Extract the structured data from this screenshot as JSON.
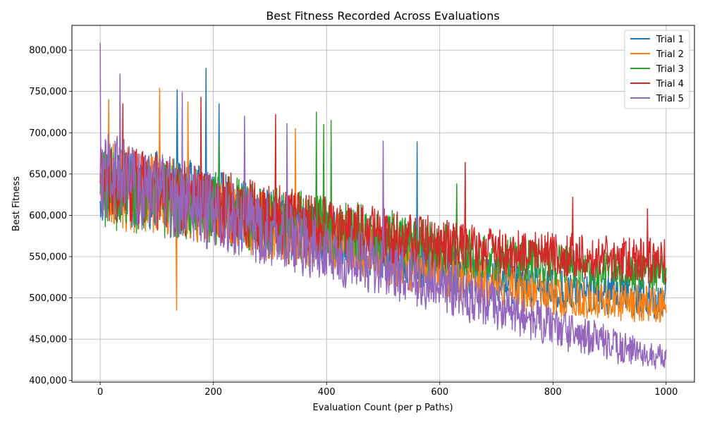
{
  "chart_data": {
    "type": "line",
    "title": "Best Fitness Recorded Across Evaluations",
    "xlabel": "Evaluation Count (per p Paths)",
    "ylabel": "Best Fitness",
    "xlim": [
      -50,
      1050
    ],
    "ylim": [
      398000,
      830000
    ],
    "xticks": [
      0,
      200,
      400,
      600,
      800,
      1000
    ],
    "xtick_labels": [
      "0",
      "200",
      "400",
      "600",
      "800",
      "1000"
    ],
    "yticks": [
      400000,
      450000,
      500000,
      550000,
      600000,
      650000,
      700000,
      750000,
      800000
    ],
    "ytick_labels": [
      "400,000",
      "450,000",
      "500,000",
      "550,000",
      "600,000",
      "650,000",
      "700,000",
      "750,000",
      "800,000"
    ],
    "grid": true,
    "legend_position": "upper-right",
    "series": [
      {
        "name": "Trial 1",
        "color": "#1f77b4",
        "x": [
          0,
          25,
          50,
          75,
          100,
          125,
          150,
          175,
          200,
          225,
          250,
          275,
          300,
          325,
          350,
          375,
          400,
          425,
          450,
          475,
          500,
          525,
          550,
          575,
          600,
          625,
          650,
          675,
          700,
          725,
          750,
          775,
          800,
          825,
          850,
          875,
          900,
          925,
          950,
          975,
          1000
        ],
        "mean": [
          640000,
          645000,
          632000,
          628000,
          630000,
          622000,
          625000,
          615000,
          612000,
          606000,
          600000,
          598000,
          590000,
          585000,
          578000,
          575000,
          570000,
          566000,
          562000,
          558000,
          553000,
          550000,
          548000,
          542000,
          538000,
          532000,
          528000,
          525000,
          522000,
          518000,
          515000,
          512000,
          510000,
          508000,
          506000,
          505000,
          503000,
          502000,
          500000,
          499000,
          498000
        ],
        "spread": [
          40000,
          40000,
          40000,
          38000,
          38000,
          38000,
          38000,
          36000,
          36000,
          34000,
          34000,
          32000,
          32000,
          32000,
          30000,
          30000,
          30000,
          28000,
          28000,
          28000,
          26000,
          26000,
          26000,
          26000,
          24000,
          24000,
          24000,
          22000,
          22000,
          22000,
          22000,
          20000,
          20000,
          20000,
          20000,
          20000,
          20000,
          20000,
          20000,
          20000,
          20000
        ],
        "peaks": [
          [
            187,
            778000
          ],
          [
            210,
            735000
          ],
          [
            136,
            752000
          ],
          [
            560,
            689000
          ]
        ]
      },
      {
        "name": "Trial 2",
        "color": "#ff7f0e",
        "x": [
          0,
          25,
          50,
          75,
          100,
          125,
          150,
          175,
          200,
          225,
          250,
          275,
          300,
          325,
          350,
          375,
          400,
          425,
          450,
          475,
          500,
          525,
          550,
          575,
          600,
          625,
          650,
          675,
          700,
          725,
          750,
          775,
          800,
          825,
          850,
          875,
          900,
          925,
          950,
          975,
          1000
        ],
        "mean": [
          640000,
          635000,
          630000,
          628000,
          625000,
          620000,
          615000,
          610000,
          605000,
          600000,
          595000,
          590000,
          586000,
          582000,
          578000,
          574000,
          570000,
          565000,
          560000,
          555000,
          550000,
          545000,
          540000,
          536000,
          532000,
          528000,
          524000,
          520000,
          516000,
          512000,
          508000,
          505000,
          502000,
          500000,
          498000,
          496000,
          495000,
          494000,
          493000,
          492000,
          492000
        ],
        "spread": [
          42000,
          42000,
          42000,
          40000,
          40000,
          40000,
          38000,
          38000,
          36000,
          36000,
          34000,
          34000,
          32000,
          32000,
          32000,
          30000,
          30000,
          30000,
          28000,
          28000,
          28000,
          26000,
          26000,
          26000,
          24000,
          24000,
          24000,
          22000,
          22000,
          22000,
          20000,
          20000,
          20000,
          20000,
          18000,
          18000,
          18000,
          18000,
          18000,
          18000,
          18000
        ],
        "peaks": [
          [
            105,
            754000
          ],
          [
            15,
            740000
          ],
          [
            155,
            737000
          ],
          [
            345,
            705000
          ],
          [
            135,
            485000
          ]
        ]
      },
      {
        "name": "Trial 3",
        "color": "#2ca02c",
        "x": [
          0,
          25,
          50,
          75,
          100,
          125,
          150,
          175,
          200,
          225,
          250,
          275,
          300,
          325,
          350,
          375,
          400,
          425,
          450,
          475,
          500,
          525,
          550,
          575,
          600,
          625,
          650,
          675,
          700,
          725,
          750,
          775,
          800,
          825,
          850,
          875,
          900,
          925,
          950,
          975,
          1000
        ],
        "mean": [
          635000,
          632000,
          628000,
          625000,
          622000,
          618000,
          615000,
          612000,
          608000,
          605000,
          602000,
          598000,
          595000,
          592000,
          590000,
          588000,
          585000,
          582000,
          580000,
          576000,
          573000,
          570000,
          566000,
          563000,
          560000,
          557000,
          554000,
          551000,
          548000,
          546000,
          544000,
          542000,
          540000,
          538000,
          536000,
          534000,
          533000,
          532000,
          531000,
          530000,
          530000
        ],
        "spread": [
          40000,
          40000,
          40000,
          38000,
          38000,
          38000,
          38000,
          36000,
          36000,
          36000,
          34000,
          34000,
          34000,
          32000,
          32000,
          32000,
          30000,
          30000,
          30000,
          28000,
          28000,
          28000,
          26000,
          26000,
          26000,
          24000,
          24000,
          24000,
          22000,
          22000,
          22000,
          20000,
          20000,
          20000,
          20000,
          20000,
          18000,
          18000,
          18000,
          18000,
          18000
        ],
        "peaks": [
          [
            382,
            725000
          ],
          [
            395,
            710000
          ],
          [
            408,
            715000
          ],
          [
            210,
            690000
          ],
          [
            630,
            638000
          ]
        ]
      },
      {
        "name": "Trial 4",
        "color": "#d62728",
        "x": [
          0,
          25,
          50,
          75,
          100,
          125,
          150,
          175,
          200,
          225,
          250,
          275,
          300,
          325,
          350,
          375,
          400,
          425,
          450,
          475,
          500,
          525,
          550,
          575,
          600,
          625,
          650,
          675,
          700,
          725,
          750,
          775,
          800,
          825,
          850,
          875,
          900,
          925,
          950,
          975,
          1000
        ],
        "mean": [
          640000,
          638000,
          635000,
          632000,
          628000,
          625000,
          620000,
          616000,
          612000,
          608000,
          604000,
          600000,
          597000,
          594000,
          591000,
          588000,
          585000,
          582000,
          580000,
          577000,
          575000,
          572000,
          570000,
          568000,
          565000,
          563000,
          561000,
          559000,
          557000,
          555000,
          554000,
          553000,
          552000,
          551000,
          550000,
          549000,
          548000,
          547000,
          546000,
          545000,
          545000
        ],
        "spread": [
          40000,
          40000,
          40000,
          40000,
          38000,
          38000,
          38000,
          36000,
          36000,
          36000,
          34000,
          34000,
          34000,
          32000,
          32000,
          32000,
          30000,
          30000,
          30000,
          28000,
          28000,
          28000,
          26000,
          26000,
          26000,
          24000,
          24000,
          24000,
          22000,
          22000,
          22000,
          22000,
          22000,
          22000,
          22000,
          22000,
          22000,
          22000,
          22000,
          22000,
          22000
        ],
        "peaks": [
          [
            178,
            743000
          ],
          [
            40,
            735000
          ],
          [
            310,
            722000
          ],
          [
            645,
            664000
          ],
          [
            835,
            622000
          ],
          [
            967,
            608000
          ]
        ]
      },
      {
        "name": "Trial 5",
        "color": "#9467bd",
        "x": [
          0,
          25,
          50,
          75,
          100,
          125,
          150,
          175,
          200,
          225,
          250,
          275,
          300,
          325,
          350,
          375,
          400,
          425,
          450,
          475,
          500,
          525,
          550,
          575,
          600,
          625,
          650,
          675,
          700,
          725,
          750,
          775,
          800,
          825,
          850,
          875,
          900,
          925,
          950,
          975,
          1000
        ],
        "mean": [
          650000,
          645000,
          638000,
          632000,
          628000,
          622000,
          615000,
          610000,
          604000,
          598000,
          592000,
          586000,
          580000,
          575000,
          570000,
          564000,
          558000,
          553000,
          548000,
          542000,
          537000,
          531000,
          525000,
          520000,
          514000,
          508000,
          502000,
          496000,
          490000,
          484000,
          478000,
          472000,
          466000,
          460000,
          455000,
          450000,
          445000,
          440000,
          435000,
          430000,
          428000
        ],
        "spread": [
          42000,
          42000,
          42000,
          40000,
          40000,
          40000,
          38000,
          38000,
          38000,
          36000,
          36000,
          36000,
          34000,
          34000,
          34000,
          32000,
          32000,
          32000,
          30000,
          30000,
          30000,
          28000,
          28000,
          28000,
          26000,
          26000,
          26000,
          24000,
          24000,
          22000,
          22000,
          22000,
          20000,
          20000,
          18000,
          18000,
          16000,
          16000,
          14000,
          14000,
          12000
        ],
        "peaks": [
          [
            0,
            809000
          ],
          [
            35,
            771000
          ],
          [
            145,
            749000
          ],
          [
            255,
            720000
          ],
          [
            330,
            711000
          ],
          [
            500,
            690000
          ],
          [
            915,
            420000
          ]
        ]
      }
    ]
  }
}
